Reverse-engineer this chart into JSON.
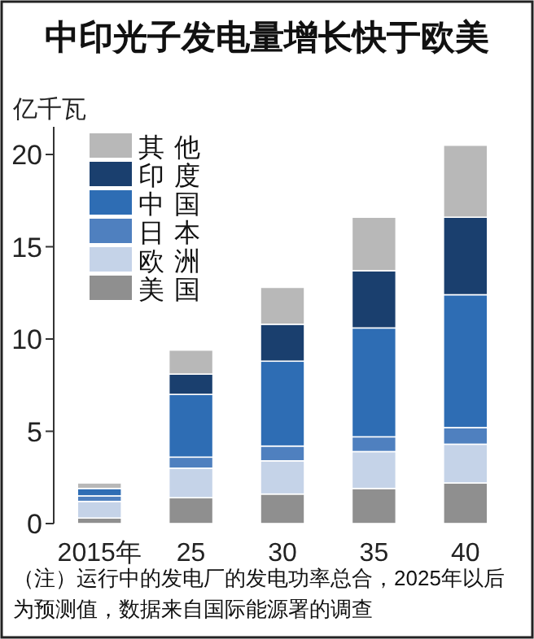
{
  "chart_data": {
    "type": "bar",
    "stacked": true,
    "title": "中印光子发电量增长快于欧美",
    "ylabel": "亿千瓦",
    "categories": [
      "2015年",
      "25",
      "30",
      "35",
      "40"
    ],
    "series": [
      {
        "name": "美国",
        "color": "#8f8f8f",
        "values": [
          0.3,
          1.4,
          1.6,
          1.9,
          2.2
        ]
      },
      {
        "name": "欧洲",
        "color": "#c5d3e8",
        "values": [
          0.9,
          1.6,
          1.8,
          2.0,
          2.1
        ]
      },
      {
        "name": "日本",
        "color": "#4f80bf",
        "values": [
          0.3,
          0.6,
          0.8,
          0.8,
          0.9
        ]
      },
      {
        "name": "中国",
        "color": "#2e6db4",
        "values": [
          0.4,
          3.4,
          4.6,
          5.9,
          7.2
        ]
      },
      {
        "name": "印度",
        "color": "#1a3f6e",
        "values": [
          null,
          1.1,
          2.0,
          3.1,
          4.2
        ]
      },
      {
        "name": "其他",
        "color": "#b8b8b8",
        "values": [
          0.3,
          1.3,
          2.0,
          2.9,
          3.9
        ]
      }
    ],
    "ylim": [
      0,
      21.5
    ],
    "yticks": [
      0,
      5,
      10,
      15,
      20
    ],
    "grid": false,
    "legend": "top left",
    "annotations": [
      "（注）运行中的发电厂的发电功率总合，2025年以后为预测值，数据来自国际能源署的调查"
    ]
  }
}
